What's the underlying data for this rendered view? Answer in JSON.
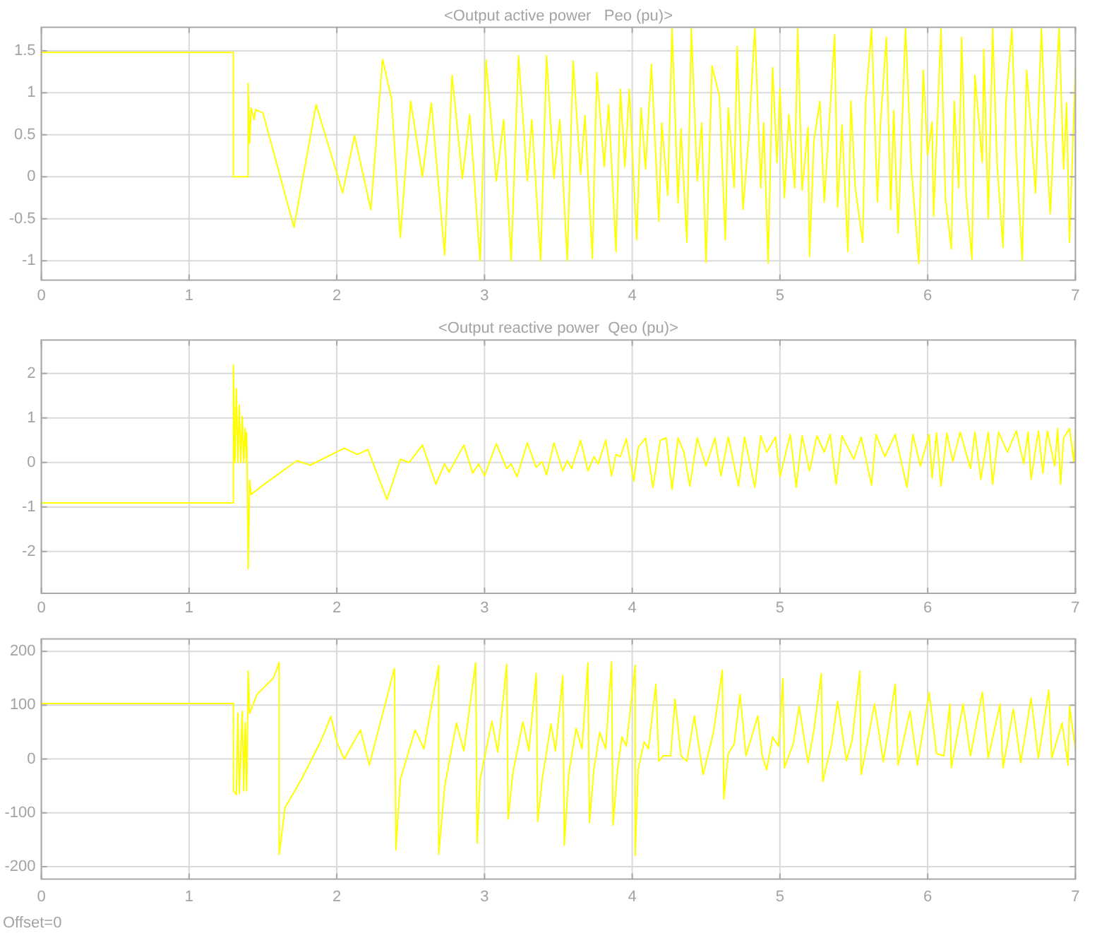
{
  "chart_data": [
    {
      "type": "line",
      "title": "<Output active power   Peo (pu)>",
      "color": "#ffff00",
      "xlim": [
        0,
        7
      ],
      "xticks": [
        0,
        1,
        2,
        3,
        4,
        5,
        6,
        7
      ],
      "ylim": [
        -1.23,
        1.78
      ],
      "yticks": [
        -1,
        -0.5,
        0,
        0.5,
        1,
        1.5
      ],
      "grid": true,
      "x": [
        0,
        1.3,
        1.3,
        1.4,
        1.4,
        1.41,
        1.42,
        1.44,
        1.45,
        1.5,
        1.71,
        1.86,
        2.04,
        2.12,
        2.23,
        2.31,
        2.37,
        2.43,
        2.5,
        2.58,
        2.64,
        2.73,
        2.78,
        2.85,
        2.9,
        2.97,
        3.01,
        3.08,
        3.13,
        3.18,
        3.23,
        3.29,
        3.32,
        3.38,
        3.42,
        3.47,
        3.51,
        3.56,
        3.6,
        3.65,
        3.68,
        3.73,
        3.76,
        3.81,
        3.84,
        3.89,
        3.92,
        3.95,
        3.98,
        4.03,
        4.06,
        4.09,
        4.13,
        4.18,
        4.2,
        4.24,
        4.27,
        4.31,
        4.33,
        4.37,
        4.4,
        4.44,
        4.47,
        4.5,
        4.54,
        4.59,
        4.63,
        4.65,
        4.69,
        4.71,
        4.75,
        4.79,
        4.83,
        4.87,
        4.89,
        4.92,
        4.95,
        4.98,
        5.0,
        5.03,
        5.06,
        5.1,
        5.12,
        5.15,
        5.19,
        5.2,
        5.23,
        5.27,
        5.3,
        5.34,
        5.37,
        5.39,
        5.42,
        5.46,
        5.48,
        5.51,
        5.56,
        5.58,
        5.62,
        5.66,
        5.68,
        5.72,
        5.75,
        5.77,
        5.8,
        5.85,
        5.89,
        5.94,
        5.97,
        6.0,
        6.03,
        6.04,
        6.09,
        6.12,
        6.16,
        6.18,
        6.21,
        6.23,
        6.26,
        6.3,
        6.32,
        6.37,
        6.38,
        6.41,
        6.44,
        6.47,
        6.51,
        6.53,
        6.57,
        6.6,
        6.64,
        6.67,
        6.71,
        6.73,
        6.77,
        6.8,
        6.83,
        6.86,
        6.89,
        6.92,
        6.94,
        6.96,
        7.0
      ],
      "values": [
        1.48,
        1.48,
        0,
        0,
        1.11,
        0.4,
        0.82,
        0.68,
        0.8,
        0.76,
        -0.6,
        0.86,
        -0.19,
        0.49,
        -0.39,
        1.4,
        0.93,
        -0.72,
        0.9,
        0,
        0.88,
        -0.93,
        1.21,
        -0.02,
        0.74,
        -1.0,
        1.39,
        -0.05,
        0.68,
        -1.0,
        1.44,
        -0.05,
        0.68,
        -1.0,
        1.44,
        -0.02,
        0.68,
        -1.0,
        1.38,
        0.03,
        0.73,
        -0.97,
        1.24,
        0.12,
        0.86,
        -0.89,
        1.04,
        0.12,
        1.04,
        -0.75,
        0.82,
        0.09,
        1.34,
        -0.53,
        0.64,
        -0.22,
        1.77,
        -0.31,
        0.57,
        -0.78,
        1.77,
        -0.05,
        0.64,
        -1.02,
        1.32,
        0.96,
        -0.75,
        0.82,
        -0.13,
        1.55,
        -0.39,
        0.51,
        1.77,
        -0.13,
        0.64,
        -1.03,
        1.3,
        0.17,
        1.05,
        -0.25,
        0.74,
        -0.13,
        1.77,
        -0.16,
        0.59,
        -0.95,
        0.43,
        0.9,
        -0.3,
        0.82,
        1.69,
        -0.36,
        0.62,
        -0.89,
        0.9,
        -0.13,
        -0.78,
        0.88,
        1.77,
        -0.3,
        0.62,
        1.66,
        -0.39,
        0.79,
        -0.67,
        1.77,
        0.09,
        -1.03,
        1.27,
        0.26,
        0.65,
        -0.47,
        1.77,
        -0.25,
        -0.86,
        0.9,
        -0.13,
        1.66,
        -0.22,
        -0.98,
        1.21,
        0.17,
        1.52,
        -0.5,
        1.77,
        0.15,
        -0.84,
        0.88,
        1.77,
        0.26,
        -1.0,
        1.27,
        0.31,
        -0.19,
        1.77,
        0.43,
        -0.44,
        0.76,
        1.77,
        0.09,
        0.88,
        -0.78,
        1.27
      ]
    },
    {
      "type": "line",
      "title": "<Output reactive power  Qeo (pu)>",
      "color": "#ffff00",
      "xlim": [
        0,
        7
      ],
      "xticks": [
        0,
        1,
        2,
        3,
        4,
        5,
        6,
        7
      ],
      "ylim": [
        -2.94,
        2.75
      ],
      "yticks": [
        -2,
        -1,
        0,
        1,
        2
      ],
      "grid": true,
      "x": [
        0,
        1.3,
        1.3,
        1.31,
        1.32,
        1.33,
        1.34,
        1.35,
        1.36,
        1.37,
        1.38,
        1.39,
        1.39,
        1.4,
        1.41,
        1.42,
        1.5,
        1.73,
        1.82,
        2.05,
        2.14,
        2.21,
        2.34,
        2.43,
        2.49,
        2.58,
        2.67,
        2.73,
        2.76,
        2.86,
        2.92,
        2.96,
        3.0,
        3.08,
        3.15,
        3.18,
        3.22,
        3.29,
        3.35,
        3.39,
        3.42,
        3.47,
        3.53,
        3.56,
        3.59,
        3.65,
        3.7,
        3.74,
        3.77,
        3.82,
        3.86,
        3.89,
        3.92,
        3.96,
        4.01,
        4.04,
        4.09,
        4.14,
        4.19,
        4.23,
        4.27,
        4.31,
        4.35,
        4.39,
        4.44,
        4.5,
        4.56,
        4.6,
        4.65,
        4.72,
        4.76,
        4.83,
        4.87,
        4.91,
        4.97,
        5.0,
        5.07,
        5.11,
        5.15,
        5.2,
        5.25,
        5.3,
        5.34,
        5.38,
        5.42,
        5.5,
        5.55,
        5.62,
        5.65,
        5.71,
        5.78,
        5.86,
        5.9,
        5.95,
        6.01,
        6.03,
        6.06,
        6.09,
        6.13,
        6.17,
        6.22,
        6.29,
        6.32,
        6.36,
        6.41,
        6.44,
        6.48,
        6.54,
        6.6,
        6.65,
        6.68,
        6.7,
        6.75,
        6.78,
        6.81,
        6.86,
        6.88,
        6.9,
        6.92,
        6.96,
        6.99,
        7.0
      ],
      "values": [
        -0.91,
        -0.91,
        2.19,
        0,
        1.66,
        0,
        1.29,
        0,
        1.03,
        0,
        0.76,
        0,
        0.66,
        -2.39,
        -0.4,
        -0.72,
        -0.51,
        0.04,
        -0.06,
        0.32,
        0.18,
        0.29,
        -0.83,
        0.07,
        0,
        0.39,
        -0.49,
        -0.03,
        -0.22,
        0.39,
        -0.24,
        -0.03,
        -0.3,
        0.42,
        -0.14,
        -0.03,
        -0.32,
        0.44,
        -0.11,
        0.02,
        -0.28,
        0.44,
        -0.19,
        0.04,
        -0.14,
        0.5,
        -0.19,
        0.13,
        -0.03,
        0.5,
        -0.3,
        0.18,
        0.13,
        0.53,
        -0.42,
        0.34,
        0.55,
        -0.56,
        0.5,
        0.55,
        -0.61,
        0.55,
        0.23,
        -0.53,
        0.55,
        -0.08,
        0.55,
        -0.3,
        0.57,
        -0.53,
        0.57,
        -0.56,
        0.6,
        0.23,
        0.57,
        -0.32,
        0.63,
        -0.56,
        0.6,
        -0.19,
        0.6,
        0.23,
        0.63,
        -0.49,
        0.6,
        0.07,
        0.57,
        -0.51,
        0.63,
        0.13,
        0.63,
        -0.56,
        0.63,
        -0.08,
        0.63,
        -0.35,
        0.66,
        -0.53,
        0.66,
        0.02,
        0.68,
        -0.14,
        0.68,
        -0.38,
        0.68,
        -0.49,
        0.68,
        0.23,
        0.71,
        -0.03,
        0.68,
        -0.38,
        0.71,
        -0.24,
        0.71,
        -0.08,
        0.76,
        -0.49,
        0.55,
        0.76,
        0,
        0.71
      ]
    },
    {
      "type": "line",
      "color": "#ffff00",
      "xlim": [
        0,
        7
      ],
      "xticks": [
        0,
        1,
        2,
        3,
        4,
        5,
        6,
        7
      ],
      "ylim": [
        -223,
        223
      ],
      "yticks": [
        -200,
        -100,
        0,
        100,
        200
      ],
      "grid": true,
      "annotations": [
        "Offset=0"
      ],
      "x": [
        0,
        1.3,
        1.3,
        1.32,
        1.33,
        1.34,
        1.36,
        1.37,
        1.38,
        1.39,
        1.4,
        1.41,
        1.46,
        1.57,
        1.61,
        1.61,
        1.65,
        1.76,
        1.89,
        1.96,
        2.0,
        2.05,
        2.16,
        2.22,
        2.39,
        2.4,
        2.43,
        2.53,
        2.59,
        2.69,
        2.69,
        2.73,
        2.81,
        2.86,
        2.94,
        2.95,
        2.97,
        3.05,
        3.09,
        3.15,
        3.16,
        3.19,
        3.26,
        3.3,
        3.35,
        3.36,
        3.39,
        3.45,
        3.48,
        3.53,
        3.54,
        3.57,
        3.62,
        3.66,
        3.7,
        3.71,
        3.74,
        3.78,
        3.82,
        3.86,
        3.87,
        3.9,
        3.93,
        3.96,
        4.02,
        4.02,
        4.04,
        4.08,
        4.11,
        4.16,
        4.18,
        4.21,
        4.26,
        4.29,
        4.33,
        4.37,
        4.42,
        4.48,
        4.55,
        4.61,
        4.62,
        4.65,
        4.69,
        4.73,
        4.77,
        4.85,
        4.88,
        4.91,
        4.95,
        4.99,
        5.02,
        5.03,
        5.09,
        5.13,
        5.19,
        5.23,
        5.28,
        5.29,
        5.35,
        5.39,
        5.45,
        5.49,
        5.54,
        5.55,
        5.64,
        5.7,
        5.78,
        5.8,
        5.88,
        5.93,
        6.01,
        6.06,
        6.11,
        6.15,
        6.16,
        6.24,
        6.29,
        6.37,
        6.41,
        6.49,
        6.51,
        6.58,
        6.63,
        6.7,
        6.75,
        6.82,
        6.84,
        6.91,
        6.95,
        6.96,
        7.0
      ],
      "values": [
        103,
        103,
        -59,
        -66,
        85,
        -64,
        89,
        -59,
        67,
        -59,
        163,
        85,
        120,
        150,
        179,
        -177,
        -90,
        -38,
        32,
        79,
        32,
        0,
        54,
        -11,
        168,
        -169,
        -38,
        54,
        19,
        174,
        -177,
        -51,
        67,
        15,
        179,
        -156,
        -38,
        70,
        13,
        176,
        -112,
        -29,
        69,
        15,
        159,
        -116,
        -38,
        65,
        15,
        155,
        -160,
        -29,
        57,
        19,
        179,
        -118,
        -20,
        50,
        19,
        181,
        -123,
        -20,
        41,
        24,
        174,
        -179,
        -20,
        32,
        19,
        139,
        -4,
        6,
        6,
        111,
        6,
        -4,
        80,
        -29,
        50,
        165,
        -74,
        10,
        28,
        120,
        6,
        80,
        6,
        -20,
        41,
        24,
        150,
        -16,
        28,
        98,
        -7,
        54,
        159,
        -42,
        28,
        107,
        -3,
        37,
        163,
        -29,
        102,
        -5,
        139,
        -11,
        89,
        -11,
        124,
        10,
        6,
        102,
        -16,
        102,
        6,
        124,
        2,
        102,
        -16,
        93,
        -7,
        113,
        2,
        128,
        2,
        67,
        -11,
        98,
        19
      ]
    }
  ]
}
